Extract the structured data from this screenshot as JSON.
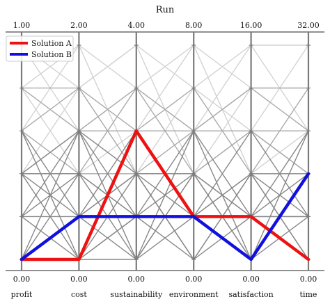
{
  "chart_data": {
    "type": "parallel-coordinates",
    "title": "Run",
    "axes": [
      "profit",
      "cost",
      "sustainability",
      "environment",
      "satisfaction",
      "time"
    ],
    "top_tick_labels": [
      "1.00",
      "2.00",
      "4.00",
      "8.00",
      "16.00",
      "32.00"
    ],
    "bottom_tick_labels": [
      "0.00",
      "0.00",
      "0.00",
      "0.00",
      "0.00",
      "0.00"
    ],
    "y_levels": 6,
    "legend": {
      "position": "top-left",
      "entries": [
        "Solution A",
        "Solution B"
      ]
    },
    "series": [
      {
        "name": "Solution A",
        "color": "#ee1111",
        "levels": [
          0,
          0,
          3,
          1,
          1,
          0
        ]
      },
      {
        "name": "Solution B",
        "color": "#1111dd",
        "levels": [
          0,
          1,
          1,
          1,
          0,
          2
        ]
      }
    ],
    "background_lines": [
      {
        "color": "#d3d3d3",
        "levels": [
          5,
          4,
          5,
          4,
          5,
          5
        ]
      },
      {
        "color": "#d3d3d3",
        "levels": [
          4,
          5,
          4,
          5,
          4,
          4
        ]
      },
      {
        "color": "#d3d3d3",
        "levels": [
          3,
          5,
          2,
          4,
          3,
          5
        ]
      },
      {
        "color": "#d3d3d3",
        "levels": [
          5,
          3,
          4,
          3,
          5,
          3
        ]
      },
      {
        "color": "#d3d3d3",
        "levels": [
          2,
          4,
          5,
          2,
          4,
          4
        ]
      },
      {
        "color": "#d3d3d3",
        "levels": [
          4,
          2,
          3,
          5,
          2,
          3
        ]
      },
      {
        "color": "#aaaaaa",
        "levels": [
          3,
          4,
          2,
          3,
          4,
          3
        ]
      },
      {
        "color": "#aaaaaa",
        "levels": [
          4,
          3,
          4,
          2,
          3,
          2
        ]
      },
      {
        "color": "#aaaaaa",
        "levels": [
          2,
          3,
          3,
          4,
          2,
          4
        ]
      },
      {
        "color": "#aaaaaa",
        "levels": [
          3,
          2,
          4,
          3,
          3,
          2
        ]
      },
      {
        "color": "#aaaaaa",
        "levels": [
          2,
          2,
          2,
          2,
          3,
          3
        ]
      },
      {
        "color": "#aaaaaa",
        "levels": [
          4,
          4,
          3,
          3,
          4,
          4
        ]
      },
      {
        "color": "#888888",
        "levels": [
          1,
          2,
          1,
          2,
          1,
          2
        ]
      },
      {
        "color": "#888888",
        "levels": [
          2,
          1,
          2,
          1,
          2,
          1
        ]
      },
      {
        "color": "#888888",
        "levels": [
          0,
          1,
          0,
          1,
          0,
          1
        ]
      },
      {
        "color": "#888888",
        "levels": [
          1,
          0,
          1,
          0,
          1,
          0
        ]
      },
      {
        "color": "#888888",
        "levels": [
          2,
          0,
          2,
          0,
          2,
          0
        ]
      },
      {
        "color": "#888888",
        "levels": [
          0,
          2,
          0,
          2,
          0,
          2
        ]
      },
      {
        "color": "#888888",
        "levels": [
          1,
          3,
          1,
          3,
          1,
          3
        ]
      },
      {
        "color": "#888888",
        "levels": [
          3,
          1,
          3,
          1,
          3,
          1
        ]
      },
      {
        "color": "#888888",
        "levels": [
          1,
          1,
          2,
          2,
          1,
          1
        ]
      },
      {
        "color": "#888888",
        "levels": [
          2,
          2,
          1,
          1,
          2,
          2
        ]
      },
      {
        "color": "#888888",
        "levels": [
          0,
          3,
          2,
          0,
          2,
          0
        ]
      },
      {
        "color": "#888888",
        "levels": [
          3,
          0,
          0,
          3,
          0,
          3
        ]
      },
      {
        "color": "#888888",
        "levels": [
          2,
          3,
          0,
          2,
          0,
          2
        ]
      },
      {
        "color": "#888888",
        "levels": [
          0,
          0,
          1,
          1,
          1,
          1
        ]
      }
    ]
  }
}
